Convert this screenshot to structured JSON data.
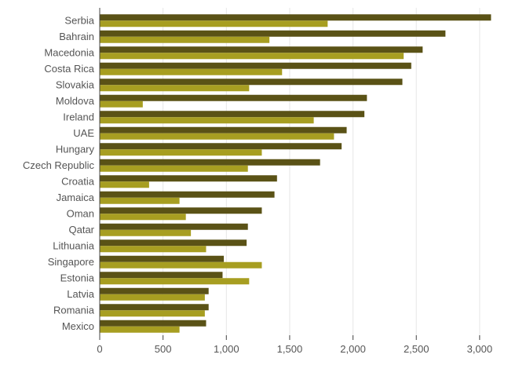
{
  "chart_data": {
    "type": "bar",
    "orientation": "horizontal",
    "categories": [
      "Serbia",
      "Bahrain",
      "Macedonia",
      "Costa Rica",
      "Slovakia",
      "Moldova",
      "Ireland",
      "UAE",
      "Hungary",
      "Czech Republic",
      "Croatia",
      "Jamaica",
      "Oman",
      "Qatar",
      "Lithuania",
      "Singapore",
      "Estonia",
      "Latvia",
      "Romania",
      "Mexico"
    ],
    "series": [
      {
        "color": "#5a5216",
        "values": [
          3090,
          2730,
          2550,
          2460,
          2390,
          2110,
          2090,
          1950,
          1910,
          1740,
          1400,
          1380,
          1280,
          1170,
          1160,
          980,
          970,
          860,
          860,
          840
        ]
      },
      {
        "color": "#a79e21",
        "values": [
          1800,
          1340,
          2400,
          1440,
          1180,
          340,
          1690,
          1850,
          1280,
          1170,
          390,
          630,
          680,
          720,
          840,
          1280,
          1180,
          830,
          830,
          630
        ]
      }
    ],
    "xlim": [
      0,
      3100
    ],
    "xticks": [
      0,
      500,
      1000,
      1500,
      2000,
      2500,
      3000
    ],
    "xtick_labels": [
      "0",
      "500",
      "1,000",
      "1,500",
      "2,000",
      "2,500",
      "3,000"
    ],
    "grid": true,
    "title": "",
    "xlabel": "",
    "ylabel": ""
  }
}
